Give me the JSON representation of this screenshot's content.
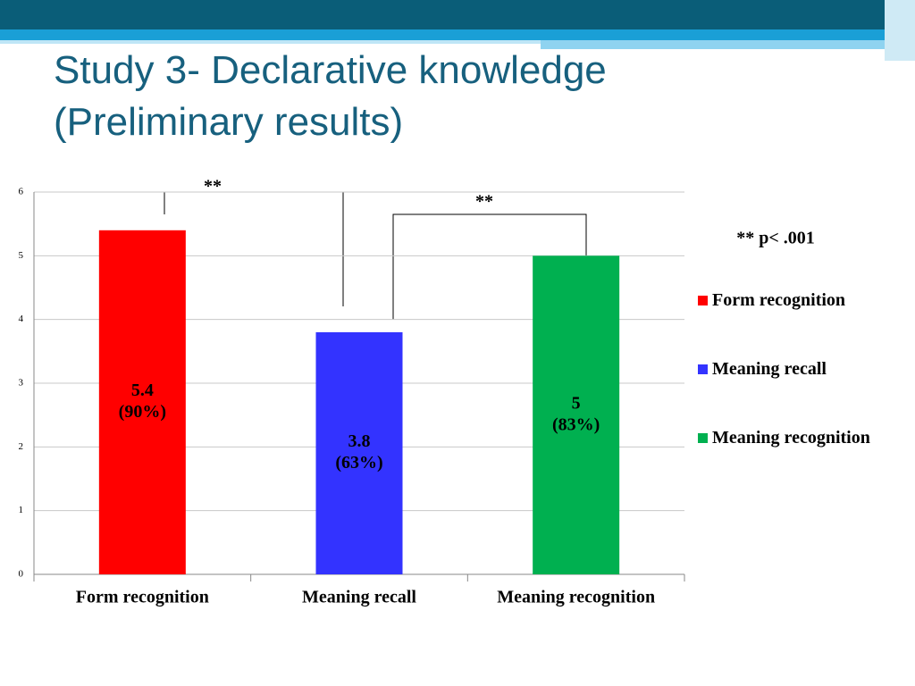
{
  "title": "Study 3- Declarative knowledge (Preliminary results)",
  "chart_data": {
    "type": "bar",
    "categories": [
      "Form recognition",
      "Meaning recall",
      "Meaning recognition"
    ],
    "series": [
      {
        "name": "Form recognition",
        "color": "#ff0000",
        "values": [
          5.4,
          null,
          null
        ],
        "value_labels": [
          [
            "5.4",
            "(90%)"
          ],
          null,
          null
        ]
      },
      {
        "name": "Meaning recall",
        "color": "#3333ff",
        "values": [
          null,
          3.8,
          null
        ],
        "value_labels": [
          null,
          [
            "3.8",
            "(63%)"
          ],
          null
        ]
      },
      {
        "name": "Meaning recognition",
        "color": "#00b050",
        "values": [
          null,
          null,
          5
        ],
        "value_labels": [
          null,
          null,
          [
            "5",
            "(83%)"
          ]
        ]
      }
    ],
    "ylim": [
      0,
      6
    ],
    "yticks": [
      0,
      1,
      2,
      3,
      4,
      5,
      6
    ],
    "grid": true,
    "annotations": [
      "**",
      "**",
      "** p< .001"
    ]
  }
}
